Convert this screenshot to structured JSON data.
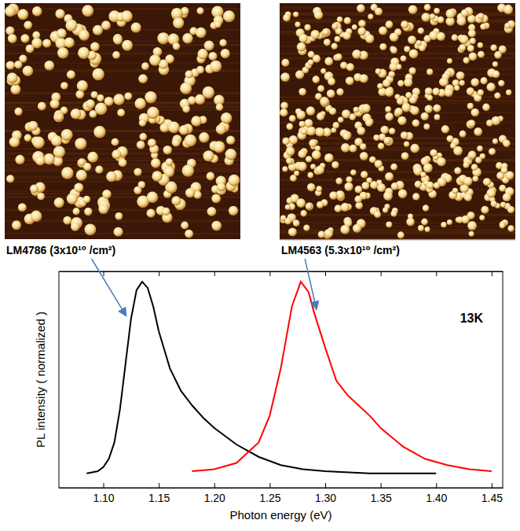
{
  "chart_data": {
    "type": "line",
    "x_label": "Photon energy (eV)",
    "y_label": "PL intensity ( normalized )",
    "annotation": "13K",
    "xlim": [
      1.06,
      1.46
    ],
    "ylim": [
      0,
      1.05
    ],
    "xticks": [
      {
        "value": 1.1,
        "label": "1.10"
      },
      1.15,
      {
        "value": 1.2,
        "label": "1.20"
      },
      1.25,
      {
        "value": 1.3,
        "label": "1.30"
      },
      1.35,
      {
        "value": 1.4,
        "label": "1.40"
      },
      1.45
    ],
    "tick_labels": "x",
    "grid": false,
    "series": [
      {
        "name": "LM4786 (3x10¹⁰ /cm²)",
        "color": "#000000",
        "line_style": "solid",
        "x": [
          1.085,
          1.095,
          1.1,
          1.105,
          1.11,
          1.115,
          1.12,
          1.125,
          1.13,
          1.135,
          1.14,
          1.145,
          1.15,
          1.16,
          1.17,
          1.18,
          1.19,
          1.2,
          1.22,
          1.24,
          1.26,
          1.28,
          1.3,
          1.34,
          1.4
        ],
        "values": [
          0.07,
          0.08,
          0.1,
          0.14,
          0.22,
          0.38,
          0.6,
          0.82,
          0.96,
          1.0,
          0.97,
          0.88,
          0.76,
          0.58,
          0.47,
          0.4,
          0.34,
          0.29,
          0.21,
          0.15,
          0.11,
          0.09,
          0.08,
          0.07,
          0.07
        ]
      },
      {
        "name": "LM4563 (5.3x10¹⁰ /cm²)",
        "color": "#ff0000",
        "line_style": "solid",
        "x": [
          1.18,
          1.2,
          1.22,
          1.24,
          1.25,
          1.26,
          1.27,
          1.278,
          1.285,
          1.29,
          1.3,
          1.31,
          1.32,
          1.33,
          1.34,
          1.35,
          1.37,
          1.39,
          1.41,
          1.43,
          1.45
        ],
        "values": [
          0.08,
          0.09,
          0.12,
          0.22,
          0.35,
          0.58,
          0.88,
          1.0,
          0.95,
          0.85,
          0.68,
          0.52,
          0.45,
          0.4,
          0.35,
          0.29,
          0.2,
          0.14,
          0.11,
          0.09,
          0.08
        ]
      }
    ]
  }
}
